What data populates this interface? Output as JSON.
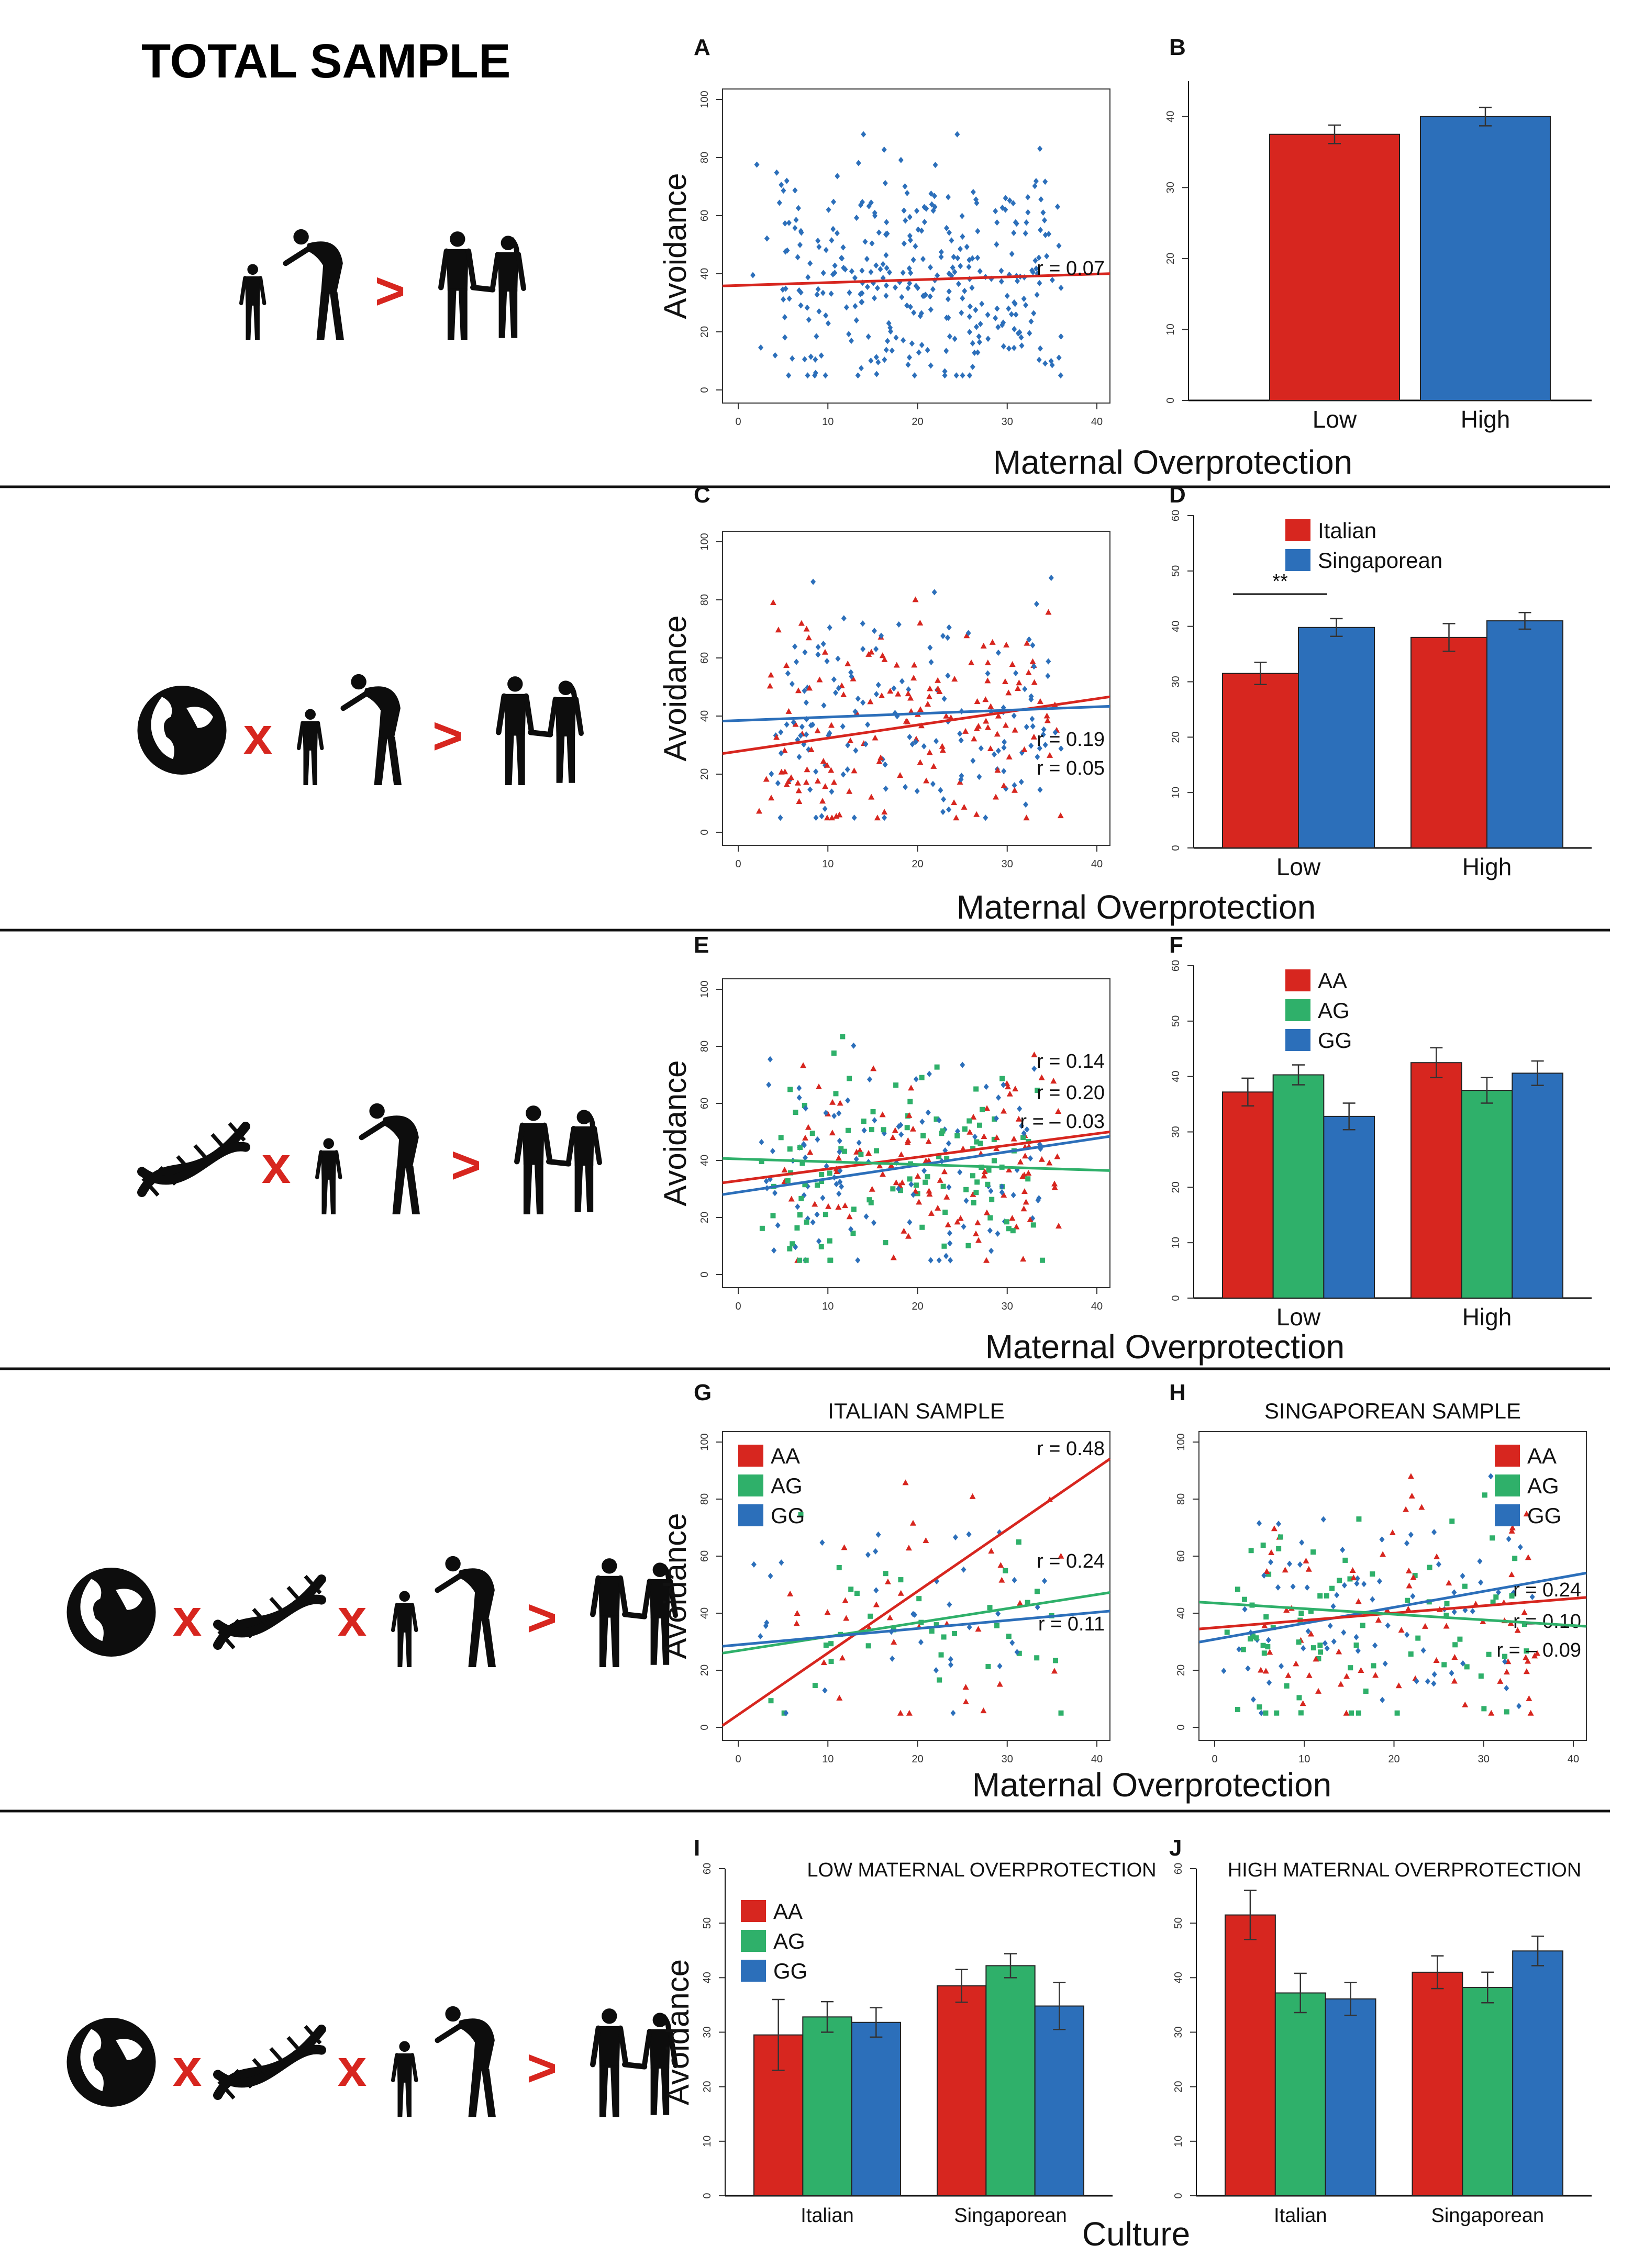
{
  "title": "TOTAL SAMPLE",
  "colors": {
    "red": "#d7261f",
    "green": "#2fb06a",
    "blue": "#2c6fba",
    "black": "#111111",
    "sil": "#0d0d0d"
  },
  "symbols": {
    "greater": ">",
    "times": "x"
  },
  "rows": [
    {
      "icons": [
        "parent-child",
        "greater",
        "couple"
      ]
    },
    {
      "icons": [
        "globe",
        "times",
        "parent-child",
        "greater",
        "couple"
      ]
    },
    {
      "icons": [
        "dna",
        "times",
        "parent-child",
        "greater",
        "couple"
      ]
    },
    {
      "icons": [
        "globe",
        "times",
        "dna",
        "times",
        "parent-child",
        "greater",
        "couple"
      ]
    },
    {
      "icons": [
        "globe",
        "times",
        "dna",
        "times",
        "parent-child",
        "greater",
        "couple"
      ]
    }
  ],
  "shared_labels": {
    "row1_x": "Maternal Overprotection",
    "row2_x": "Maternal Overprotection",
    "row3_x": "Maternal Overprotection",
    "row4_x": "Maternal Overprotection",
    "row5_x": "Culture"
  },
  "chart_data": [
    {
      "panel": "A",
      "type": "scatter",
      "ylabel": "Avoidance",
      "xlim": [
        0,
        40
      ],
      "ylim": [
        0,
        100
      ],
      "xticks": [
        "0",
        "10",
        "20",
        "30",
        "40"
      ],
      "yticks": [
        "0",
        "20",
        "40",
        "60",
        "80",
        "100"
      ],
      "series": [
        {
          "color": "blue"
        }
      ],
      "lines": [
        {
          "color": "red",
          "intercept": 36,
          "slope": 0.1,
          "r_text": "r = 0.07"
        }
      ]
    },
    {
      "panel": "B",
      "type": "bar",
      "categories": [
        "Low",
        "High"
      ],
      "ylim": [
        0,
        45
      ],
      "yticks": [
        "0",
        "10",
        "20",
        "30",
        "40"
      ],
      "series": [
        {
          "color": "red",
          "values": [
            37.5,
            null
          ],
          "err": [
            1.3,
            null
          ]
        },
        {
          "color": "blue",
          "values": [
            null,
            40
          ],
          "err": [
            null,
            1.3
          ]
        }
      ]
    },
    {
      "panel": "C",
      "type": "scatter",
      "ylabel": "Avoidance",
      "xlim": [
        0,
        40
      ],
      "ylim": [
        0,
        100
      ],
      "xticks": [
        "0",
        "10",
        "20",
        "30",
        "40"
      ],
      "yticks": [
        "0",
        "20",
        "40",
        "60",
        "80",
        "100"
      ],
      "series": [
        {
          "color": "blue"
        },
        {
          "color": "red",
          "marker": "triangle"
        }
      ],
      "lines": [
        {
          "color": "red",
          "intercept": 28,
          "slope": 0.46,
          "r_text": "r = 0.19"
        },
        {
          "color": "blue",
          "intercept": 38.5,
          "slope": 0.12,
          "r_text": "r = 0.05"
        }
      ]
    },
    {
      "panel": "D",
      "type": "bar",
      "categories": [
        "Low",
        "High"
      ],
      "ylim": [
        0,
        60
      ],
      "yticks": [
        "0",
        "10",
        "20",
        "30",
        "40",
        "50",
        "60"
      ],
      "legend": [
        "Italian",
        "Singaporean"
      ],
      "significance": "**",
      "series": [
        {
          "name": "Italian",
          "color": "red",
          "values": [
            31.5,
            38
          ],
          "err": [
            2,
            2.5
          ]
        },
        {
          "name": "Singaporean",
          "color": "blue",
          "values": [
            39.8,
            41
          ],
          "err": [
            1.6,
            1.5
          ]
        }
      ]
    },
    {
      "panel": "E",
      "type": "scatter",
      "ylabel": "Avoidance",
      "xlim": [
        0,
        40
      ],
      "ylim": [
        0,
        100
      ],
      "xticks": [
        "0",
        "10",
        "20",
        "30",
        "40"
      ],
      "yticks": [
        "0",
        "20",
        "40",
        "60",
        "80",
        "100"
      ],
      "series": [
        {
          "color": "red",
          "marker": "triangle"
        },
        {
          "color": "green",
          "marker": "square"
        },
        {
          "color": "blue"
        }
      ],
      "lines": [
        {
          "color": "red",
          "intercept": 33,
          "slope": 0.42,
          "r_text": "r = 0.14"
        },
        {
          "color": "blue",
          "intercept": 29,
          "slope": 0.48,
          "r_text": "r = 0.20"
        },
        {
          "color": "green",
          "intercept": 40.5,
          "slope": -0.1,
          "r_text": "r = – 0.03"
        }
      ]
    },
    {
      "panel": "F",
      "type": "bar",
      "categories": [
        "Low",
        "High"
      ],
      "ylim": [
        0,
        60
      ],
      "yticks": [
        "0",
        "10",
        "20",
        "30",
        "40",
        "50",
        "60"
      ],
      "legend": [
        "AA",
        "AG",
        "GG"
      ],
      "series": [
        {
          "name": "AA",
          "color": "red",
          "values": [
            37.2,
            42.5
          ],
          "err": [
            2.5,
            2.7
          ]
        },
        {
          "name": "AG",
          "color": "green",
          "values": [
            40.3,
            37.5
          ],
          "err": [
            1.8,
            2.3
          ]
        },
        {
          "name": "GG",
          "color": "blue",
          "values": [
            32.8,
            40.6
          ],
          "err": [
            2.4,
            2.2
          ]
        }
      ]
    },
    {
      "panel": "G",
      "type": "scatter",
      "title": "ITALIAN SAMPLE",
      "ylabel": "Avoidance",
      "xlim": [
        0,
        40
      ],
      "ylim": [
        0,
        100
      ],
      "xticks": [
        "0",
        "10",
        "20",
        "30",
        "40"
      ],
      "yticks": [
        "0",
        "20",
        "40",
        "60",
        "80",
        "100"
      ],
      "legend": [
        "AA",
        "AG",
        "GG"
      ],
      "series": [
        {
          "color": "red",
          "marker": "triangle"
        },
        {
          "color": "green",
          "marker": "square"
        },
        {
          "color": "blue"
        }
      ],
      "lines": [
        {
          "color": "red",
          "intercept": 5,
          "slope": 2.2,
          "r_text": "r = 0.48"
        },
        {
          "color": "green",
          "intercept": 27,
          "slope": 0.5,
          "r_text": "r = 0.24"
        },
        {
          "color": "blue",
          "intercept": 29,
          "slope": 0.29,
          "r_text": "r = 0.11"
        }
      ]
    },
    {
      "panel": "H",
      "type": "scatter",
      "title": "SINGAPOREAN SAMPLE",
      "xlim": [
        0,
        40
      ],
      "ylim": [
        0,
        100
      ],
      "xticks": [
        "0",
        "10",
        "20",
        "30",
        "40"
      ],
      "yticks": [
        "0",
        "20",
        "40",
        "60",
        "80",
        "100"
      ],
      "legend": [
        "AA",
        "AG",
        "GG"
      ],
      "series": [
        {
          "color": "red",
          "marker": "triangle"
        },
        {
          "color": "green",
          "marker": "square"
        },
        {
          "color": "blue"
        }
      ],
      "lines": [
        {
          "color": "blue",
          "intercept": 31,
          "slope": 0.57,
          "r_text": "r = 0.24"
        },
        {
          "color": "red",
          "intercept": 35,
          "slope": 0.26,
          "r_text": "r = 0.10"
        },
        {
          "color": "green",
          "intercept": 43.5,
          "slope": -0.2,
          "r_text": "r = – 0.09"
        }
      ]
    },
    {
      "panel": "I",
      "type": "bar",
      "title": "LOW MATERNAL OVERPROTECTION",
      "ylabel": "Avoidance",
      "categories": [
        "Italian",
        "Singaporean"
      ],
      "ylim": [
        0,
        60
      ],
      "yticks": [
        "0",
        "10",
        "20",
        "30",
        "40",
        "50",
        "60"
      ],
      "legend": [
        "AA",
        "AG",
        "GG"
      ],
      "series": [
        {
          "name": "AA",
          "color": "red",
          "values": [
            29.5,
            38.5
          ],
          "err": [
            6.5,
            3
          ]
        },
        {
          "name": "AG",
          "color": "green",
          "values": [
            32.8,
            42.2
          ],
          "err": [
            2.8,
            2.2
          ]
        },
        {
          "name": "GG",
          "color": "blue",
          "values": [
            31.8,
            34.8
          ],
          "err": [
            2.7,
            4.3
          ]
        }
      ]
    },
    {
      "panel": "J",
      "type": "bar",
      "title": "HIGH MATERNAL OVERPROTECTION",
      "categories": [
        "Italian",
        "Singaporean"
      ],
      "ylim": [
        0,
        60
      ],
      "yticks": [
        "0",
        "10",
        "20",
        "30",
        "40",
        "50",
        "60"
      ],
      "series": [
        {
          "name": "AA",
          "color": "red",
          "values": [
            51.5,
            41
          ],
          "err": [
            4.5,
            3
          ]
        },
        {
          "name": "AG",
          "color": "green",
          "values": [
            37.2,
            38.2
          ],
          "err": [
            3.6,
            2.8
          ]
        },
        {
          "name": "GG",
          "color": "blue",
          "values": [
            36.1,
            44.9
          ],
          "err": [
            3,
            2.7
          ]
        }
      ]
    }
  ]
}
